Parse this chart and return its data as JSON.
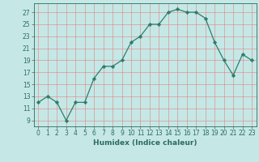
{
  "x": [
    0,
    1,
    2,
    3,
    4,
    5,
    6,
    7,
    8,
    9,
    10,
    11,
    12,
    13,
    14,
    15,
    16,
    17,
    18,
    19,
    20,
    21,
    22,
    23
  ],
  "y": [
    12,
    13,
    12,
    9,
    12,
    12,
    16,
    18,
    18,
    19,
    22,
    23,
    25,
    25,
    27,
    27.5,
    27,
    27,
    26,
    22,
    19,
    16.5,
    20,
    19
  ],
  "line_color": "#2e7d6e",
  "marker": "D",
  "marker_size": 2.2,
  "bg_color": "#c5e8e6",
  "grid_color": "#e08080",
  "xlabel": "Humidex (Indice chaleur)",
  "xlim": [
    -0.5,
    23.5
  ],
  "ylim": [
    8,
    28.5
  ],
  "yticks": [
    9,
    11,
    13,
    15,
    17,
    19,
    21,
    23,
    25,
    27
  ],
  "xtick_labels": [
    "0",
    "1",
    "2",
    "3",
    "4",
    "5",
    "6",
    "7",
    "8",
    "9",
    "10",
    "11",
    "12",
    "13",
    "14",
    "15",
    "16",
    "17",
    "18",
    "19",
    "20",
    "21",
    "22",
    "23"
  ],
  "font_color": "#2e6b5e",
  "axis_color": "#2e6b5e",
  "linewidth": 0.9,
  "xlabel_fontsize": 6.5,
  "tick_fontsize": 5.5
}
